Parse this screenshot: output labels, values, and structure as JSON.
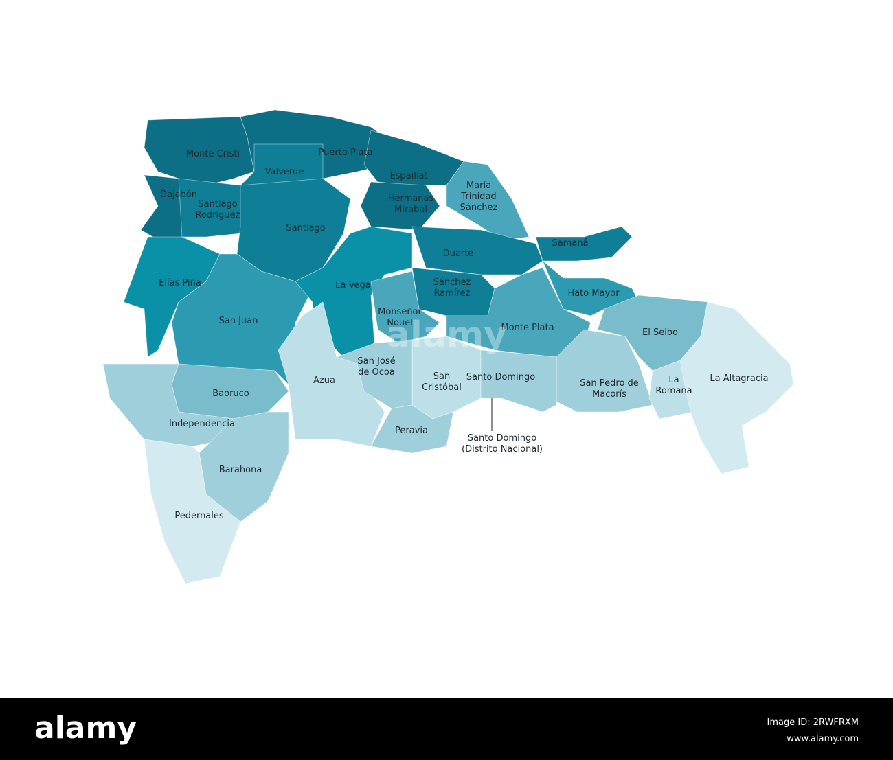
{
  "map": {
    "regions": [
      {
        "name": [
          "Monte Cristi"
        ]
      },
      {
        "name": [
          "Puerto Plata"
        ]
      },
      {
        "name": [
          "Valverde"
        ]
      },
      {
        "name": [
          "Espaillat"
        ]
      },
      {
        "name": [
          "Dajabón"
        ]
      },
      {
        "name": [
          "Santiago",
          "Rodríguez"
        ]
      },
      {
        "name": [
          "Santiago"
        ]
      },
      {
        "name": [
          "Hermanas",
          "Mirabal"
        ]
      },
      {
        "name": [
          "María",
          "Trinidad",
          "Sánchez"
        ]
      },
      {
        "name": [
          "Duarte"
        ]
      },
      {
        "name": [
          "Samaná"
        ]
      },
      {
        "name": [
          "Elías Piña"
        ]
      },
      {
        "name": [
          "San Juan"
        ]
      },
      {
        "name": [
          "La Vega"
        ]
      },
      {
        "name": [
          "Sánchez",
          "Ramírez"
        ]
      },
      {
        "name": [
          "Monseñor",
          "Nouel"
        ]
      },
      {
        "name": [
          "Hato Mayor"
        ]
      },
      {
        "name": [
          "Monte Plata"
        ]
      },
      {
        "name": [
          "El Seibo"
        ]
      },
      {
        "name": [
          "San Pedro de",
          "Macorís"
        ]
      },
      {
        "name": [
          "La",
          "Romana"
        ]
      },
      {
        "name": [
          "La Altagracia"
        ]
      },
      {
        "name": [
          "San",
          "Cristóbal"
        ]
      },
      {
        "name": [
          "Santo Domingo"
        ]
      },
      {
        "name": [
          "Azua"
        ]
      },
      {
        "name": [
          "San José",
          "de Ocoa"
        ]
      },
      {
        "name": [
          "Peravia"
        ]
      },
      {
        "name": [
          "Baoruco"
        ]
      },
      {
        "name": [
          "Independencia"
        ]
      },
      {
        "name": [
          "Barahona"
        ]
      },
      {
        "name": [
          "Pedernales"
        ]
      }
    ],
    "capital": {
      "name": [
        "Santo Domingo",
        "(Distrito Nacional)"
      ]
    }
  },
  "watermark": "alamy",
  "footer": {
    "logo": "alamy",
    "image_id": "Image ID: 2RWFRXM",
    "url": "www.alamy.com"
  }
}
